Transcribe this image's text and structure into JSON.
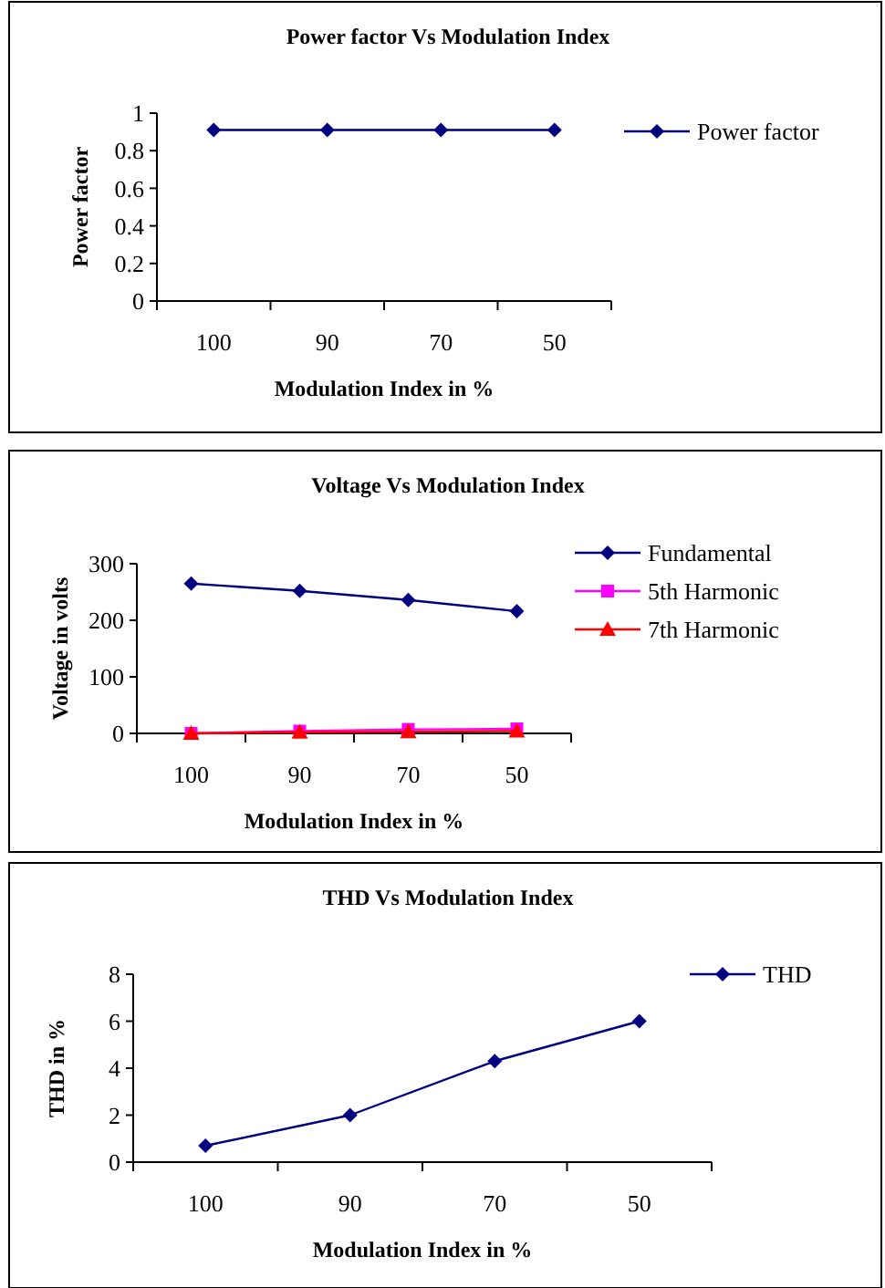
{
  "chart_data": [
    {
      "type": "line",
      "title": "Power factor Vs Modulation Index",
      "xlabel": "Modulation Index in %",
      "ylabel": "Power factor",
      "categories": [
        "100",
        "90",
        "70",
        "50"
      ],
      "ylim": [
        0,
        1
      ],
      "yticks": [
        0,
        0.2,
        0.4,
        0.6,
        0.8,
        1
      ],
      "legend": "right",
      "grid": false,
      "series": [
        {
          "name": "Power factor",
          "color": "#000080",
          "marker": "diamond",
          "values": [
            0.91,
            0.91,
            0.91,
            0.91
          ]
        }
      ]
    },
    {
      "type": "line",
      "title": "Voltage Vs Modulation Index",
      "xlabel": "Modulation Index in %",
      "ylabel": "Voltage in volts",
      "categories": [
        "100",
        "90",
        "70",
        "50"
      ],
      "ylim": [
        0,
        300
      ],
      "yticks": [
        0,
        100,
        200,
        300
      ],
      "legend": "right",
      "grid": false,
      "series": [
        {
          "name": "Fundamental",
          "color": "#000080",
          "marker": "diamond",
          "values": [
            265,
            252,
            236,
            216
          ]
        },
        {
          "name": "5th Harmonic",
          "color": "#ff00ff",
          "marker": "square",
          "values": [
            0,
            4,
            7,
            8
          ]
        },
        {
          "name": "7th Harmonic",
          "color": "#ff0000",
          "marker": "triangle",
          "values": [
            0,
            2,
            3,
            4
          ]
        }
      ]
    },
    {
      "type": "line",
      "title": "THD Vs Modulation Index",
      "xlabel": "Modulation Index in %",
      "ylabel": "THD in %",
      "categories": [
        "100",
        "90",
        "70",
        "50"
      ],
      "ylim": [
        0,
        8
      ],
      "yticks": [
        0,
        2,
        4,
        6,
        8
      ],
      "legend": "right",
      "grid": false,
      "series": [
        {
          "name": "THD",
          "color": "#000080",
          "marker": "diamond",
          "values": [
            0.7,
            2,
            4.3,
            6
          ]
        }
      ]
    }
  ]
}
